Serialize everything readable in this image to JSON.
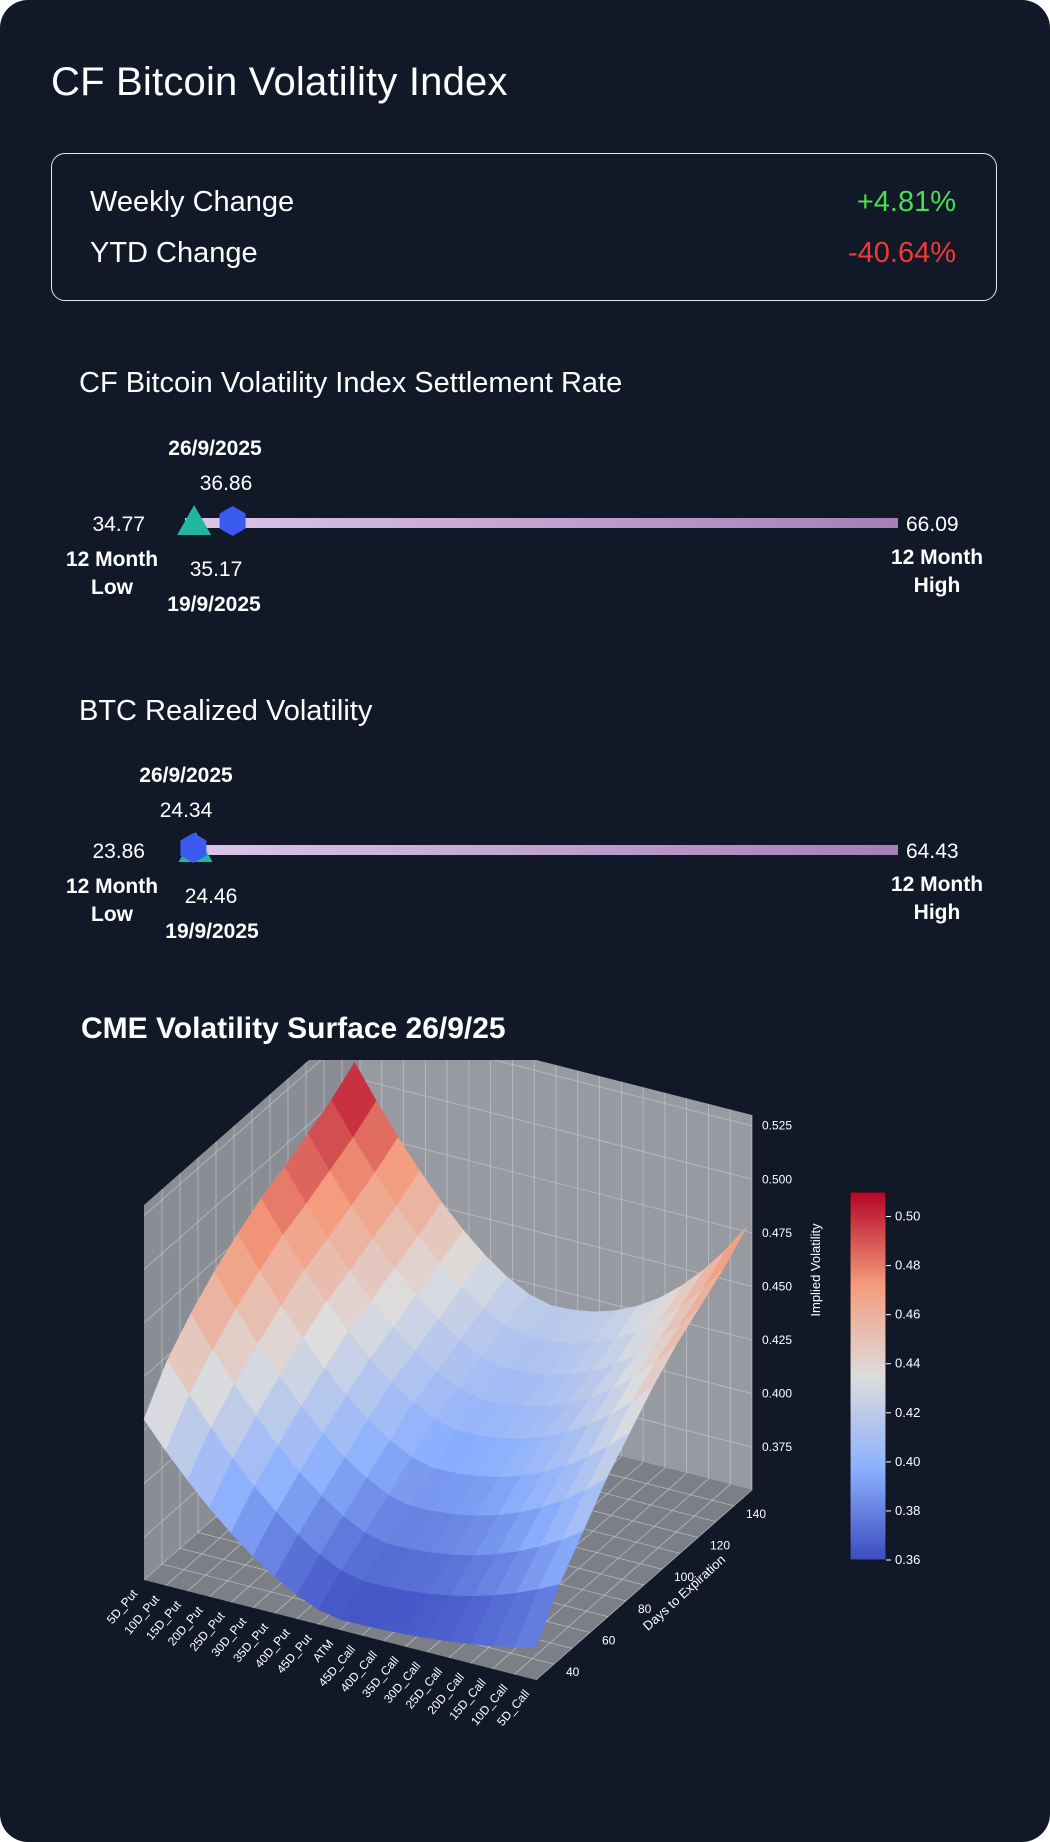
{
  "title": "CF Bitcoin Volatility Index",
  "stats": {
    "weekly_label": "Weekly Change",
    "weekly_value": "+4.81%",
    "ytd_label": "YTD Change",
    "ytd_value": "-40.64%",
    "positive_color": "#4ade50",
    "negative_color": "#ef3b36"
  },
  "settlement": {
    "title": "CF Bitcoin Volatility Index Settlement Rate",
    "current_date": "26/9/2025",
    "current_value": "36.86",
    "previous_value": "35.17",
    "previous_date": "19/9/2025",
    "low_value": "34.77",
    "low_label": [
      "12 Month",
      "Low"
    ],
    "high_value": "66.09",
    "high_label": [
      "12 Month",
      "High"
    ]
  },
  "realized": {
    "title": "BTC Realized Volatility",
    "current_date": "26/9/2025",
    "current_value": "24.34",
    "previous_value": "24.46",
    "previous_date": "19/9/2025",
    "low_value": "23.86",
    "low_label": [
      "12 Month",
      "Low"
    ],
    "high_value": "64.43",
    "high_label": [
      "12 Month",
      "High"
    ]
  },
  "surface_title": "CME Volatility Surface 26/9/25",
  "chart_data": [
    {
      "type": "range",
      "min": 34.77,
      "max": 66.09,
      "markers": [
        {
          "date": "26/9/2025",
          "value": 36.86,
          "shape": "hexagon",
          "color": "#3b5bf0"
        },
        {
          "date": "19/9/2025",
          "value": 35.17,
          "shape": "triangle",
          "color": "#22b5a0"
        }
      ]
    },
    {
      "type": "range",
      "min": 23.86,
      "max": 64.43,
      "markers": [
        {
          "date": "26/9/2025",
          "value": 24.34,
          "shape": "hexagon",
          "color": "#3b5bf0"
        },
        {
          "date": "19/9/2025",
          "value": 24.46,
          "shape": "triangle",
          "color": "#22b5a0"
        }
      ]
    },
    {
      "type": "surface",
      "strikes": [
        "5D_Put",
        "10D_Put",
        "15D_Put",
        "20D_Put",
        "25D_Put",
        "30D_Put",
        "35D_Put",
        "40D_Put",
        "45D_Put",
        "ATM",
        "45D_Call",
        "40D_Call",
        "35D_Call",
        "30D_Call",
        "25D_Call",
        "20D_Call",
        "15D_Call",
        "10D_Call",
        "5D_Call"
      ],
      "days": [
        30,
        43,
        56,
        69,
        82,
        95,
        108,
        121,
        134,
        147
      ],
      "xlabel": "",
      "ylabel": "Days to Expiration",
      "zlabel": "Implied Volatility",
      "ztick_labels": [
        "0.375",
        "0.400",
        "0.425",
        "0.450",
        "0.475",
        "0.500",
        "0.525"
      ],
      "day_tick_labels": [
        "40",
        "60",
        "80",
        "100",
        "120",
        "140"
      ],
      "colorbar": {
        "min": 0.36,
        "max": 0.51,
        "tick_labels": [
          "0.36",
          "0.38",
          "0.40",
          "0.42",
          "0.44",
          "0.46",
          "0.48",
          "0.50"
        ],
        "colormap": "coolwarm"
      },
      "iv_5d_put_by_day": [
        0.43,
        0.448,
        0.46,
        0.47,
        0.478,
        0.485,
        0.49,
        0.496,
        0.502,
        0.51
      ],
      "iv_atm_by_day": [
        0.36,
        0.368,
        0.376,
        0.384,
        0.392,
        0.4,
        0.405,
        0.41,
        0.415,
        0.42
      ],
      "iv_5d_call_by_day": [
        0.37,
        0.39,
        0.405,
        0.42,
        0.432,
        0.444,
        0.454,
        0.462,
        0.47,
        0.48
      ]
    }
  ]
}
